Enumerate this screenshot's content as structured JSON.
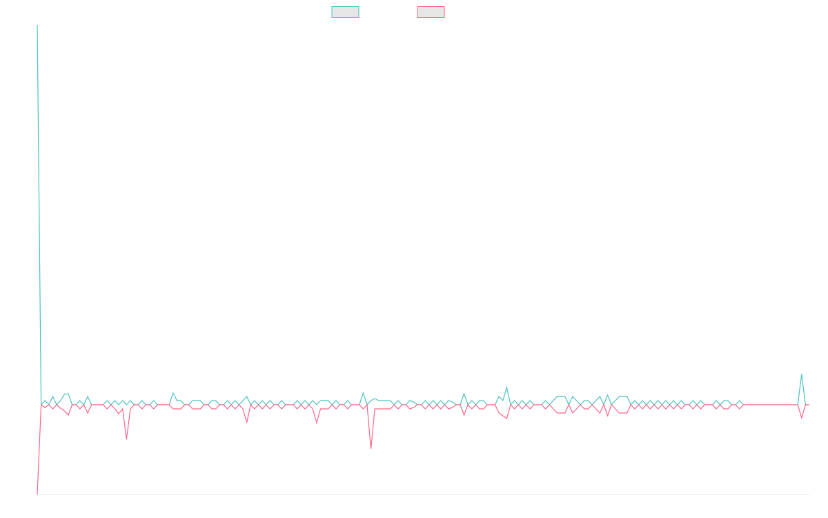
{
  "chart_data": {
    "type": "line",
    "ylim": [
      -13,
      55
    ],
    "series": [
      {
        "color": "#4bc0c0",
        "values": [
          55,
          0,
          0.6,
          0,
          1.2,
          0,
          0.6,
          1.5,
          1.6,
          0,
          0,
          0.6,
          0,
          1.2,
          0,
          0,
          0,
          0,
          0.6,
          0,
          0.6,
          0,
          0.6,
          0,
          0.6,
          0,
          0,
          0.6,
          0,
          0,
          0.6,
          0,
          0,
          0,
          0,
          1.7,
          0.6,
          0.6,
          0,
          0,
          0.6,
          0.6,
          0.6,
          0,
          0,
          0.6,
          0.6,
          0,
          0,
          0.6,
          0,
          0.6,
          0,
          0.6,
          1.2,
          0,
          0.6,
          0,
          0.6,
          0,
          0.6,
          0,
          0,
          0.6,
          0,
          0,
          0,
          0.6,
          0,
          0.6,
          0,
          0.6,
          0,
          0.6,
          0.6,
          0.6,
          0,
          0.6,
          0,
          0,
          0.6,
          0,
          0,
          0,
          1.7,
          0,
          0.6,
          0.9,
          0.6,
          0.6,
          0.6,
          0.6,
          0,
          0.6,
          0,
          0,
          0.6,
          0.4,
          0,
          0,
          0.6,
          0,
          0.6,
          0,
          0.6,
          0,
          0.6,
          0.4,
          0,
          0,
          1.6,
          0,
          0.6,
          0,
          0.6,
          0.6,
          0,
          0,
          0,
          1.2,
          0.6,
          2.5,
          0,
          0.6,
          0,
          0.6,
          0,
          0.6,
          0,
          0,
          0,
          0.6,
          0,
          0.6,
          1.2,
          1.2,
          1.2,
          0,
          1.2,
          0.6,
          0,
          0.6,
          0.6,
          0,
          0.6,
          1.2,
          0,
          1.4,
          0,
          0.6,
          1.2,
          1.2,
          1.2,
          0,
          0.6,
          0,
          0.6,
          0,
          0.6,
          0,
          0.6,
          0,
          0.6,
          0,
          0.6,
          0,
          0.6,
          0,
          0,
          0.6,
          0,
          0.6,
          0,
          0,
          0,
          0.6,
          0,
          0.6,
          0.6,
          0,
          0,
          0.6,
          0,
          0,
          0,
          0,
          0,
          0,
          0,
          0,
          0,
          0,
          0,
          0,
          0,
          0,
          0,
          4.4,
          0,
          0
        ]
      },
      {
        "color": "#ff6384",
        "values": [
          -13,
          0,
          -0.4,
          0,
          -0.6,
          0,
          -0.5,
          -0.9,
          -1.5,
          0,
          0,
          -0.6,
          0,
          -1.2,
          0,
          0,
          0,
          0,
          -0.6,
          0,
          -0.6,
          -1.3,
          -0.6,
          -5,
          -0.6,
          0,
          0,
          -0.6,
          0,
          0,
          -0.6,
          0,
          0,
          0,
          0,
          -0.6,
          -0.6,
          -0.6,
          0,
          0,
          -0.6,
          -0.6,
          -0.6,
          0,
          0,
          -0.6,
          -0.6,
          0,
          0,
          -0.6,
          0,
          -0.6,
          0,
          -0.6,
          -2.6,
          0,
          -0.6,
          0,
          -0.6,
          0,
          -0.6,
          0,
          0,
          -0.6,
          0,
          0,
          0,
          -0.6,
          0,
          -0.6,
          0,
          -0.6,
          -2.6,
          -0.6,
          -0.6,
          -0.6,
          0,
          -0.6,
          0,
          0,
          -0.6,
          0,
          0,
          0,
          -0.6,
          0,
          -6.4,
          -0.6,
          -0.6,
          -0.6,
          -0.6,
          -0.6,
          0,
          -0.6,
          0,
          0,
          -0.6,
          -0.4,
          0,
          0,
          -0.6,
          0,
          -0.6,
          0,
          -0.6,
          0,
          -0.6,
          -0.4,
          0,
          0,
          -1.5,
          0,
          -0.6,
          0,
          -0.6,
          -0.6,
          0,
          0,
          0,
          -1.2,
          -1.6,
          -2,
          0,
          -0.6,
          0,
          -0.6,
          0,
          -0.6,
          0,
          0,
          0,
          -0.6,
          0,
          -0.6,
          -1.2,
          -1.2,
          -1.2,
          0,
          -1.2,
          -0.6,
          0,
          -0.6,
          -0.6,
          0,
          -0.6,
          -1.2,
          0,
          -1.6,
          0,
          -0.6,
          -1.2,
          -1.2,
          -1.2,
          0,
          -0.6,
          0,
          -0.6,
          0,
          -0.6,
          0,
          -0.6,
          0,
          -0.6,
          0,
          -0.6,
          0,
          -0.6,
          0,
          0,
          -0.6,
          0,
          -0.6,
          0,
          0,
          0,
          -0.6,
          0,
          -0.6,
          -0.6,
          0,
          0,
          -0.6,
          0,
          0,
          0,
          0,
          0,
          0,
          0,
          0,
          0,
          0,
          0,
          0,
          0,
          0,
          0,
          -1.9,
          0,
          0
        ]
      }
    ]
  }
}
